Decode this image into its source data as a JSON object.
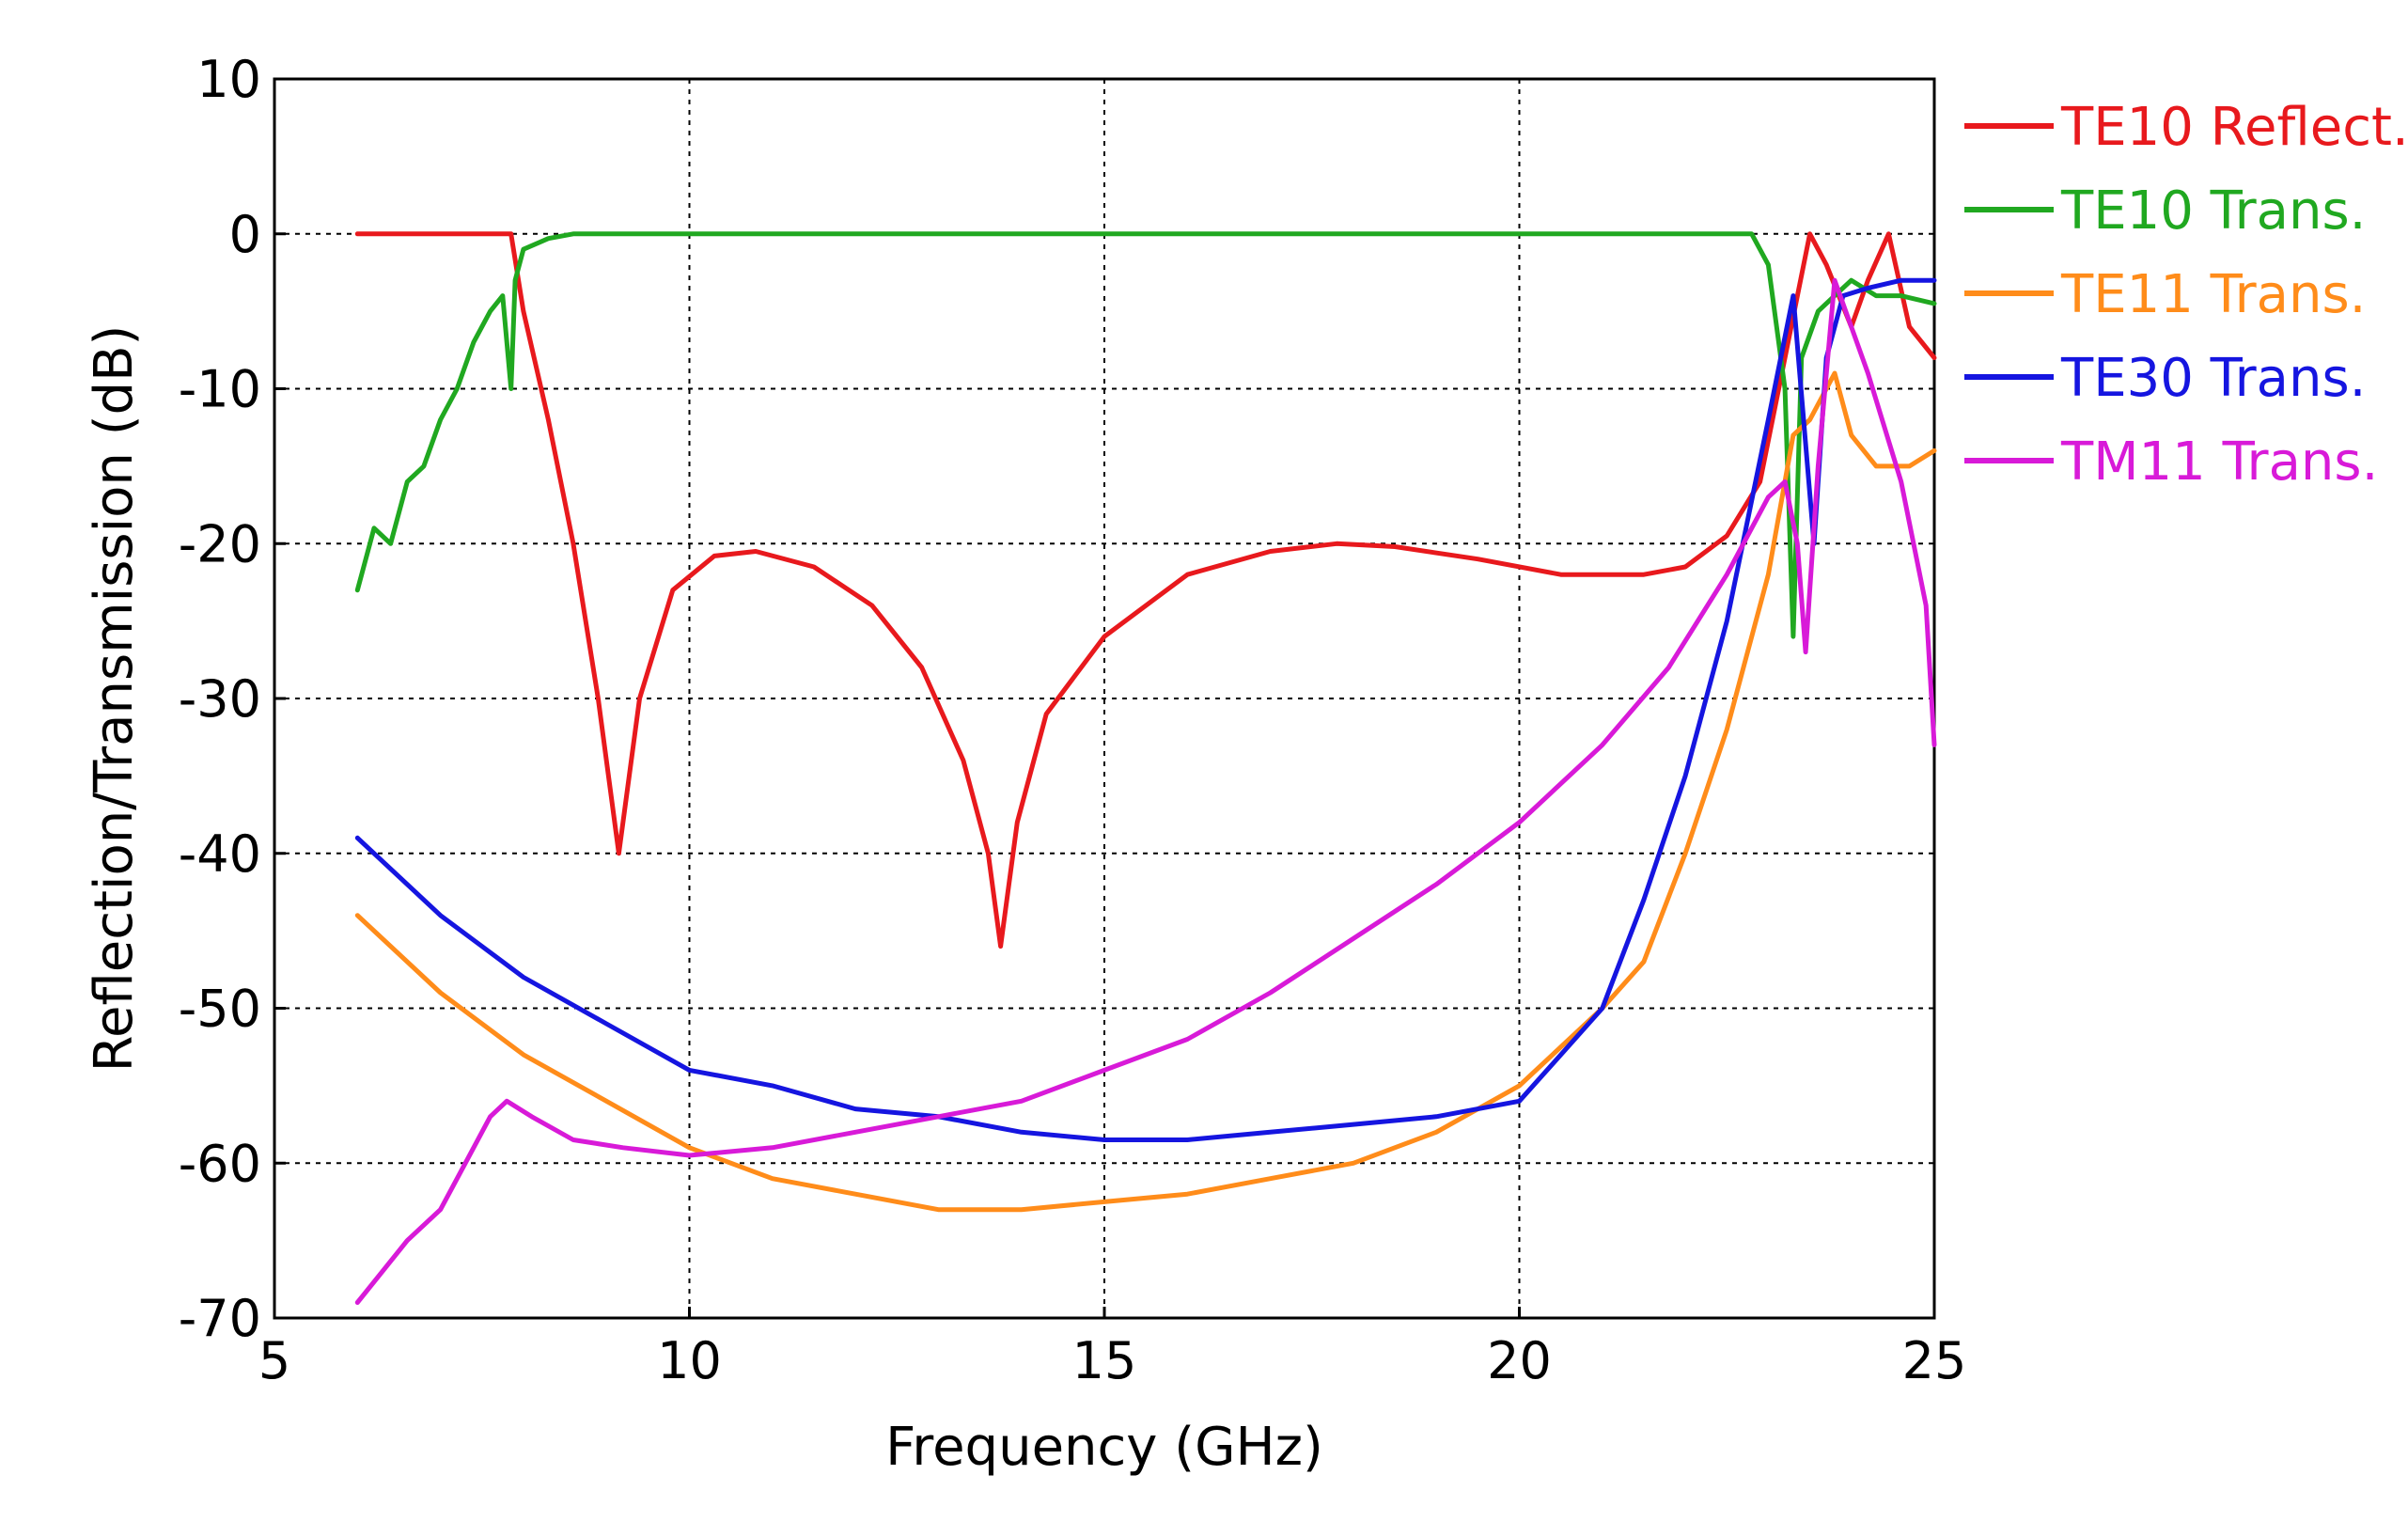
{
  "chart_data": {
    "type": "line",
    "title": "",
    "xlabel": "Frequency (GHz)",
    "ylabel": "Reflection/Transmission (dB)",
    "xlim": [
      5,
      25
    ],
    "ylim": [
      -70,
      10
    ],
    "xticks": [
      5,
      10,
      15,
      20,
      25
    ],
    "yticks": [
      10,
      0,
      -10,
      -20,
      -30,
      -40,
      -50,
      -60,
      -70
    ],
    "xtick_labels": [
      "5",
      "10",
      "15",
      "20",
      "25"
    ],
    "ytick_labels": [
      "10",
      "0",
      "-10",
      "-20",
      "-30",
      "-40",
      "-50",
      "-60",
      "-70"
    ],
    "grid": true,
    "legend_position": "right",
    "series": [
      {
        "name": "TE10 Reflect.",
        "color": "#e8191d",
        "x": [
          6.0,
          7.0,
          7.85,
          8.0,
          8.3,
          8.6,
          8.9,
          9.15,
          9.4,
          9.8,
          10.3,
          10.8,
          11.5,
          12.2,
          12.8,
          13.3,
          13.6,
          13.75,
          13.95,
          14.3,
          15.0,
          16.0,
          17.0,
          17.8,
          18.5,
          19.5,
          20.5,
          21.5,
          22.0,
          22.5,
          22.9,
          23.2,
          23.5,
          23.7,
          24.0,
          24.2,
          24.45,
          24.7,
          25.0
        ],
        "y": [
          0,
          0,
          0,
          -5,
          -12,
          -20,
          -30,
          -40,
          -30,
          -23,
          -20.8,
          -20.5,
          -21.5,
          -24,
          -28,
          -34,
          -40,
          -46,
          -38,
          -31,
          -26,
          -22,
          -20.5,
          -20,
          -20.2,
          -21,
          -22,
          -22,
          -21.5,
          -19.5,
          -16,
          -8,
          0,
          -2,
          -6,
          -3,
          0,
          -6,
          -8
        ]
      },
      {
        "name": "TE10 Trans.",
        "color": "#20a820",
        "x": [
          6.0,
          6.2,
          6.4,
          6.6,
          6.8,
          7.0,
          7.2,
          7.4,
          7.6,
          7.75,
          7.85,
          7.9,
          8.0,
          8.3,
          8.6,
          10.0,
          15.0,
          20.0,
          22.8,
          23.0,
          23.2,
          23.3,
          23.4,
          23.6,
          23.8,
          24.0,
          24.3,
          24.6,
          25.0
        ],
        "y": [
          -23,
          -19,
          -20,
          -16,
          -15,
          -12,
          -10,
          -7,
          -5,
          -4,
          -10,
          -3,
          -1,
          -0.3,
          0,
          0,
          0,
          0,
          0,
          -2,
          -10,
          -26,
          -8,
          -5,
          -4,
          -3,
          -4,
          -4,
          -4.5
        ]
      },
      {
        "name": "TE11 Trans.",
        "color": "#ff8c1a",
        "x": [
          6.0,
          7.0,
          8.0,
          9.0,
          10.0,
          11.0,
          12.0,
          13.0,
          14.0,
          15.0,
          16.0,
          17.0,
          18.0,
          19.0,
          20.0,
          21.0,
          21.5,
          22.0,
          22.5,
          23.0,
          23.3,
          23.5,
          23.8,
          24.0,
          24.3,
          24.7,
          25.0
        ],
        "y": [
          -44,
          -49,
          -53,
          -56,
          -59,
          -61,
          -62,
          -63,
          -63,
          -62.5,
          -62,
          -61,
          -60,
          -58,
          -55,
          -50,
          -47,
          -40,
          -32,
          -22,
          -13,
          -12,
          -9,
          -13,
          -15,
          -15,
          -14
        ]
      },
      {
        "name": "TE30 Trans.",
        "color": "#1515e0",
        "x": [
          6.0,
          7.0,
          8.0,
          9.0,
          10.0,
          11.0,
          12.0,
          13.0,
          14.0,
          15.0,
          16.0,
          17.0,
          18.0,
          19.0,
          20.0,
          21.0,
          21.5,
          22.0,
          22.5,
          23.0,
          23.3,
          23.55,
          23.7,
          23.9,
          24.2,
          24.6,
          25.0
        ],
        "y": [
          -39,
          -44,
          -48,
          -51,
          -54,
          -55,
          -56.5,
          -57,
          -58,
          -58.5,
          -58.5,
          -58,
          -57.5,
          -57,
          -56,
          -50,
          -43,
          -35,
          -25,
          -12,
          -4,
          -20,
          -8,
          -4,
          -3.5,
          -3,
          -3
        ]
      },
      {
        "name": "TM11 Trans.",
        "color": "#d81ad8",
        "x": [
          6.0,
          6.3,
          6.6,
          7.0,
          7.3,
          7.6,
          7.8,
          8.1,
          8.6,
          9.2,
          10.0,
          11.0,
          12.0,
          13.0,
          14.0,
          15.0,
          16.0,
          17.0,
          18.0,
          19.0,
          20.0,
          21.0,
          21.8,
          22.5,
          23.0,
          23.2,
          23.35,
          23.45,
          23.6,
          23.8,
          24.2,
          24.6,
          24.9,
          25.0
        ],
        "y": [
          -69,
          -67,
          -65,
          -63,
          -60,
          -57,
          -56,
          -57,
          -58.5,
          -59,
          -59.5,
          -59,
          -58,
          -57,
          -56,
          -54,
          -52,
          -49,
          -45.5,
          -42,
          -38,
          -33,
          -28,
          -22,
          -17,
          -16,
          -20,
          -27,
          -15,
          -3,
          -9,
          -16,
          -24,
          -33
        ]
      }
    ]
  }
}
